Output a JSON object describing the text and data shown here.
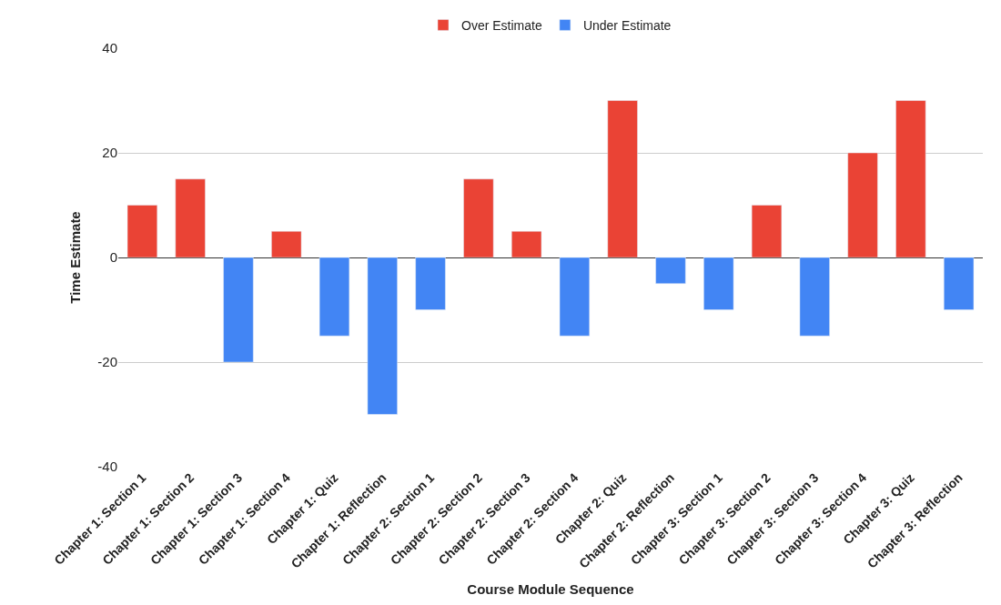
{
  "chart_data": {
    "type": "bar",
    "stacked": true,
    "xlabel": "Course Module Sequence",
    "ylabel": "Time Estimate",
    "categories": [
      "Chapter 1: Section 1",
      "Chapter 1: Section 2",
      "Chapter 1: Section 3",
      "Chapter 1: Section 4",
      "Chapter 1: Quiz",
      "Chapter 1: Reflection",
      "Chapter 2: Section 1",
      "Chapter 2: Section 2",
      "Chapter 2: Section 3",
      "Chapter 2: Section 4",
      "Chapter 2: Quiz",
      "Chapter 2: Reflection",
      "Chapter 3: Section 1",
      "Chapter 3: Section 2",
      "Chapter 3: Section 3",
      "Chapter 3: Section 4",
      "Chapter 3: Quiz",
      "Chapter 3: Reflection"
    ],
    "series": [
      {
        "name": "Over Estimate",
        "color": "#ea4335",
        "values": [
          10,
          15,
          null,
          5,
          null,
          null,
          null,
          15,
          5,
          null,
          30,
          null,
          null,
          10,
          null,
          20,
          30,
          null
        ]
      },
      {
        "name": "Under Estimate",
        "color": "#4285f4",
        "values": [
          null,
          null,
          -20,
          null,
          -15,
          -30,
          -10,
          null,
          null,
          -15,
          null,
          -5,
          -10,
          null,
          -15,
          null,
          null,
          -10
        ]
      }
    ],
    "ylim": [
      -40,
      40
    ],
    "yticks": [
      -40,
      -20,
      0,
      20,
      40
    ],
    "grid": "y",
    "legend": "top"
  }
}
